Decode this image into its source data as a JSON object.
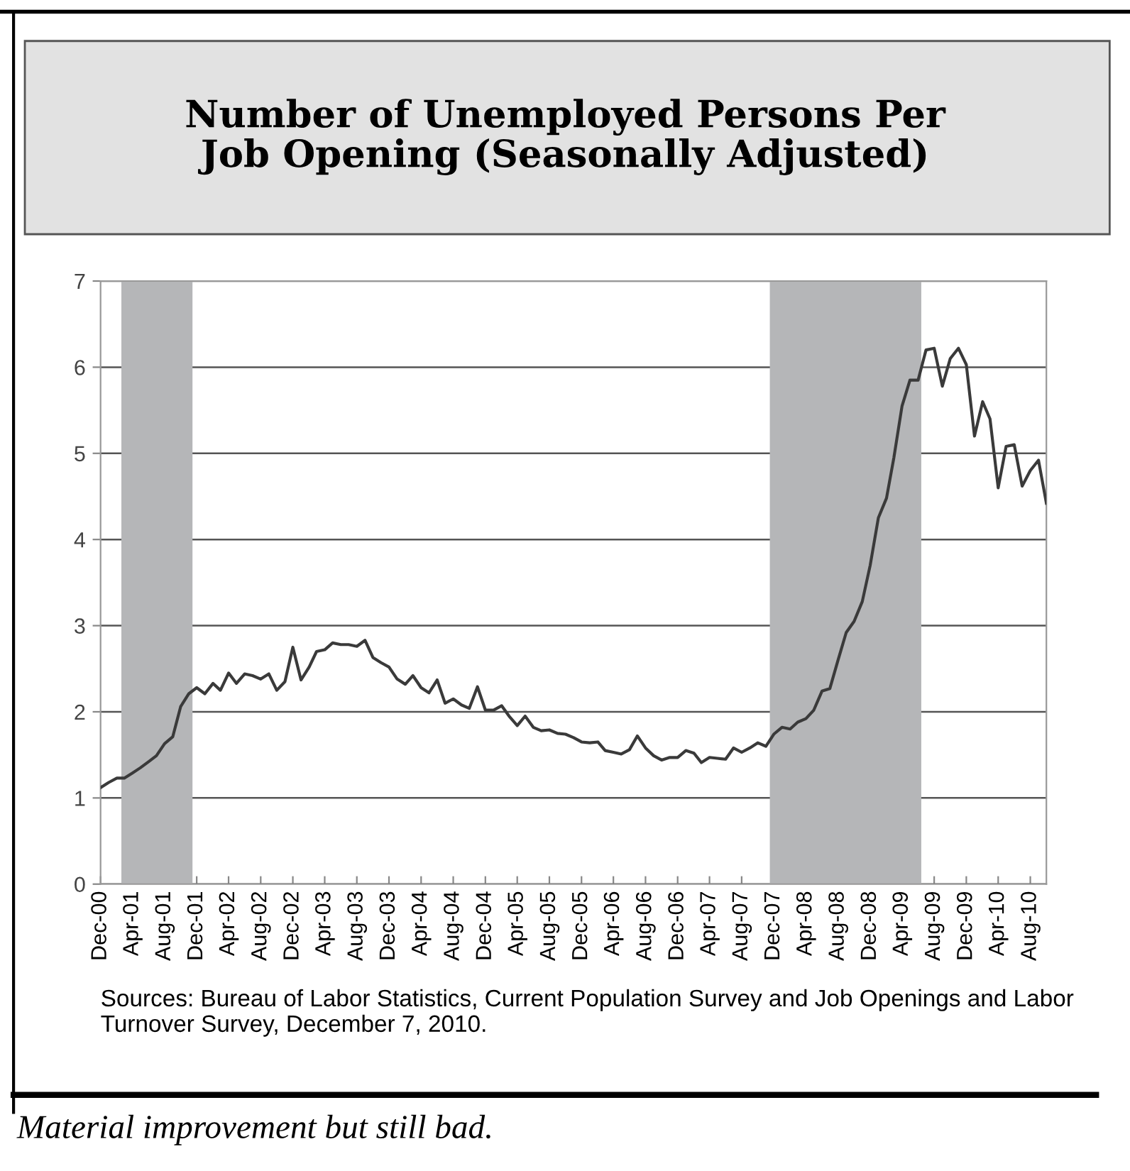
{
  "chart_data": {
    "type": "line",
    "title": "Number of Unemployed Persons Per\nJob Opening (Seasonally Adjusted)",
    "x": [
      "2000-12",
      "2001-01",
      "2001-02",
      "2001-03",
      "2001-04",
      "2001-05",
      "2001-06",
      "2001-07",
      "2001-08",
      "2001-09",
      "2001-10",
      "2001-11",
      "2001-12",
      "2002-01",
      "2002-02",
      "2002-03",
      "2002-04",
      "2002-05",
      "2002-06",
      "2002-07",
      "2002-08",
      "2002-09",
      "2002-10",
      "2002-11",
      "2002-12",
      "2003-01",
      "2003-02",
      "2003-03",
      "2003-04",
      "2003-05",
      "2003-06",
      "2003-07",
      "2003-08",
      "2003-09",
      "2003-10",
      "2003-11",
      "2003-12",
      "2004-01",
      "2004-02",
      "2004-03",
      "2004-04",
      "2004-05",
      "2004-06",
      "2004-07",
      "2004-08",
      "2004-09",
      "2004-10",
      "2004-11",
      "2004-12",
      "2005-01",
      "2005-02",
      "2005-03",
      "2005-04",
      "2005-05",
      "2005-06",
      "2005-07",
      "2005-08",
      "2005-09",
      "2005-10",
      "2005-11",
      "2005-12",
      "2006-01",
      "2006-02",
      "2006-03",
      "2006-04",
      "2006-05",
      "2006-06",
      "2006-07",
      "2006-08",
      "2006-09",
      "2006-10",
      "2006-11",
      "2006-12",
      "2007-01",
      "2007-02",
      "2007-03",
      "2007-04",
      "2007-05",
      "2007-06",
      "2007-07",
      "2007-08",
      "2007-09",
      "2007-10",
      "2007-11",
      "2007-12",
      "2008-01",
      "2008-02",
      "2008-03",
      "2008-04",
      "2008-05",
      "2008-06",
      "2008-07",
      "2008-08",
      "2008-09",
      "2008-10",
      "2008-11",
      "2008-12",
      "2009-01",
      "2009-02",
      "2009-03",
      "2009-04",
      "2009-05",
      "2009-06",
      "2009-07",
      "2009-08",
      "2009-09",
      "2009-10",
      "2009-11",
      "2009-12",
      "2010-01",
      "2010-02",
      "2010-03",
      "2010-04",
      "2010-05",
      "2010-06",
      "2010-07",
      "2010-08",
      "2010-09",
      "2010-10"
    ],
    "series": [
      {
        "color": "#3a3a3a",
        "values": [
          1.12,
          1.18,
          1.23,
          1.23,
          1.29,
          1.35,
          1.42,
          1.49,
          1.63,
          1.71,
          2.06,
          2.21,
          2.28,
          2.21,
          2.33,
          2.25,
          2.45,
          2.33,
          2.44,
          2.42,
          2.38,
          2.44,
          2.25,
          2.35,
          2.75,
          2.37,
          2.52,
          2.7,
          2.72,
          2.8,
          2.78,
          2.78,
          2.76,
          2.83,
          2.63,
          2.57,
          2.52,
          2.38,
          2.32,
          2.42,
          2.28,
          2.22,
          2.37,
          2.1,
          2.15,
          2.08,
          2.04,
          2.29,
          2.02,
          2.02,
          2.07,
          1.95,
          1.84,
          1.95,
          1.82,
          1.78,
          1.79,
          1.75,
          1.74,
          1.7,
          1.65,
          1.64,
          1.65,
          1.55,
          1.53,
          1.51,
          1.56,
          1.72,
          1.58,
          1.49,
          1.44,
          1.47,
          1.47,
          1.55,
          1.52,
          1.41,
          1.47,
          1.46,
          1.45,
          1.58,
          1.53,
          1.58,
          1.64,
          1.6,
          1.74,
          1.82,
          1.8,
          1.88,
          1.92,
          2.02,
          2.24,
          2.27,
          2.6,
          2.92,
          3.05,
          3.28,
          3.7,
          4.25,
          4.48,
          4.95,
          5.55,
          5.85,
          5.85,
          6.2,
          6.22,
          5.78,
          6.1,
          6.22,
          6.03,
          5.2,
          5.6,
          5.4,
          4.6,
          5.08,
          5.1,
          4.62,
          4.8,
          4.92,
          4.42
        ]
      }
    ],
    "xlim": [
      "2000-12",
      "2010-10"
    ],
    "xticks": [
      {
        "value": "2000-12",
        "label": "Dec-00"
      },
      {
        "value": "2001-04",
        "label": "Apr-01"
      },
      {
        "value": "2001-08",
        "label": "Aug-01"
      },
      {
        "value": "2001-12",
        "label": "Dec-01"
      },
      {
        "value": "2002-04",
        "label": "Apr-02"
      },
      {
        "value": "2002-08",
        "label": "Aug-02"
      },
      {
        "value": "2002-12",
        "label": "Dec-02"
      },
      {
        "value": "2003-04",
        "label": "Apr-03"
      },
      {
        "value": "2003-08",
        "label": "Aug-03"
      },
      {
        "value": "2003-12",
        "label": "Dec-03"
      },
      {
        "value": "2004-04",
        "label": "Apr-04"
      },
      {
        "value": "2004-08",
        "label": "Aug-04"
      },
      {
        "value": "2004-12",
        "label": "Dec-04"
      },
      {
        "value": "2005-04",
        "label": "Apr-05"
      },
      {
        "value": "2005-08",
        "label": "Aug-05"
      },
      {
        "value": "2005-12",
        "label": "Dec-05"
      },
      {
        "value": "2006-04",
        "label": "Apr-06"
      },
      {
        "value": "2006-08",
        "label": "Aug-06"
      },
      {
        "value": "2006-12",
        "label": "Dec-06"
      },
      {
        "value": "2007-04",
        "label": "Apr-07"
      },
      {
        "value": "2007-08",
        "label": "Aug-07"
      },
      {
        "value": "2007-12",
        "label": "Dec-07"
      },
      {
        "value": "2008-04",
        "label": "Apr-08"
      },
      {
        "value": "2008-08",
        "label": "Aug-08"
      },
      {
        "value": "2008-12",
        "label": "Dec-08"
      },
      {
        "value": "2009-04",
        "label": "Apr-09"
      },
      {
        "value": "2009-08",
        "label": "Aug-09"
      },
      {
        "value": "2009-12",
        "label": "Dec-09"
      },
      {
        "value": "2010-04",
        "label": "Apr-10"
      },
      {
        "value": "2010-08",
        "label": "Aug-10"
      }
    ],
    "ylim": [
      0,
      7
    ],
    "yticks": [
      0,
      1,
      2,
      3,
      4,
      5,
      6,
      7
    ],
    "grid": "y",
    "marker": "none",
    "line_style": "solid",
    "bands": [
      {
        "axis": "x",
        "from": "2001-02-18",
        "to": "2001-11-15",
        "color": "#b5b6b8"
      },
      {
        "axis": "x",
        "from": "2007-11-16",
        "to": "2009-06-13",
        "color": "#b5b6b8"
      }
    ],
    "annotations": [
      "Sources: Bureau of Labor Statistics, Current Population Survey and Job Openings and Labor Turnover Survey, December 7, 2010.",
      "Material improvement but still bad."
    ]
  }
}
